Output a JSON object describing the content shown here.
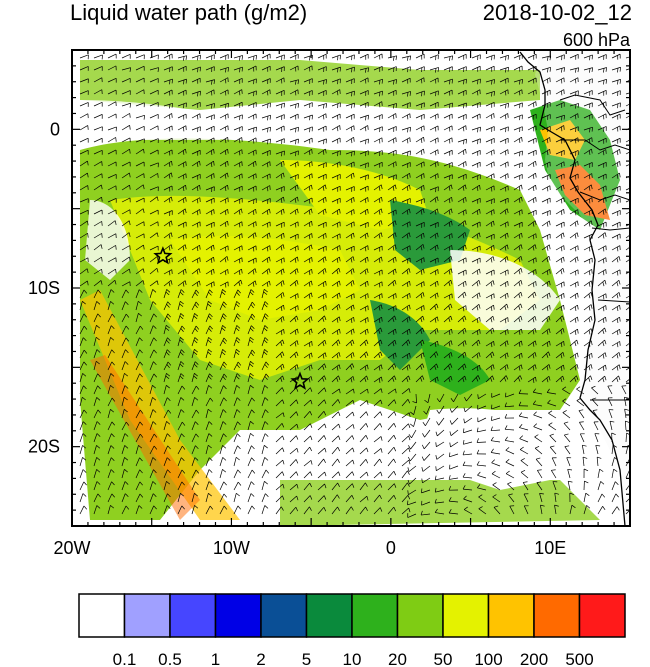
{
  "title": "Liquid water path (g/m2)",
  "datetime": "2018-10-02_12",
  "level": "600 hPa",
  "lon_axis": {
    "range": [
      -20,
      15
    ],
    "labels": [
      {
        "value": -20,
        "text": "20W"
      },
      {
        "value": -10,
        "text": "10W"
      },
      {
        "value": 0,
        "text": "0"
      },
      {
        "value": 10,
        "text": "10E"
      }
    ]
  },
  "lat_axis": {
    "range": [
      -25,
      5
    ],
    "labels": [
      {
        "value": 0,
        "text": "0"
      },
      {
        "value": -10,
        "text": "10S"
      },
      {
        "value": -20,
        "text": "20S"
      }
    ]
  },
  "markers": [
    {
      "name": "star-marker",
      "lon": -14.3,
      "lat": -8.0
    },
    {
      "name": "star-marker",
      "lon": -5.7,
      "lat": -15.9
    }
  ],
  "colorbar": {
    "colors": [
      "#ffffff",
      "#a0a0ff",
      "#4646ff",
      "#0000e6",
      "#0a4f96",
      "#0a8a3c",
      "#2eb11c",
      "#7fcc14",
      "#e4f200",
      "#ffc300",
      "#ff6a00",
      "#ff1a1a"
    ],
    "labels": [
      "0.1",
      "0.5",
      "1",
      "2",
      "5",
      "10",
      "20",
      "50",
      "100",
      "200",
      "500"
    ]
  }
}
